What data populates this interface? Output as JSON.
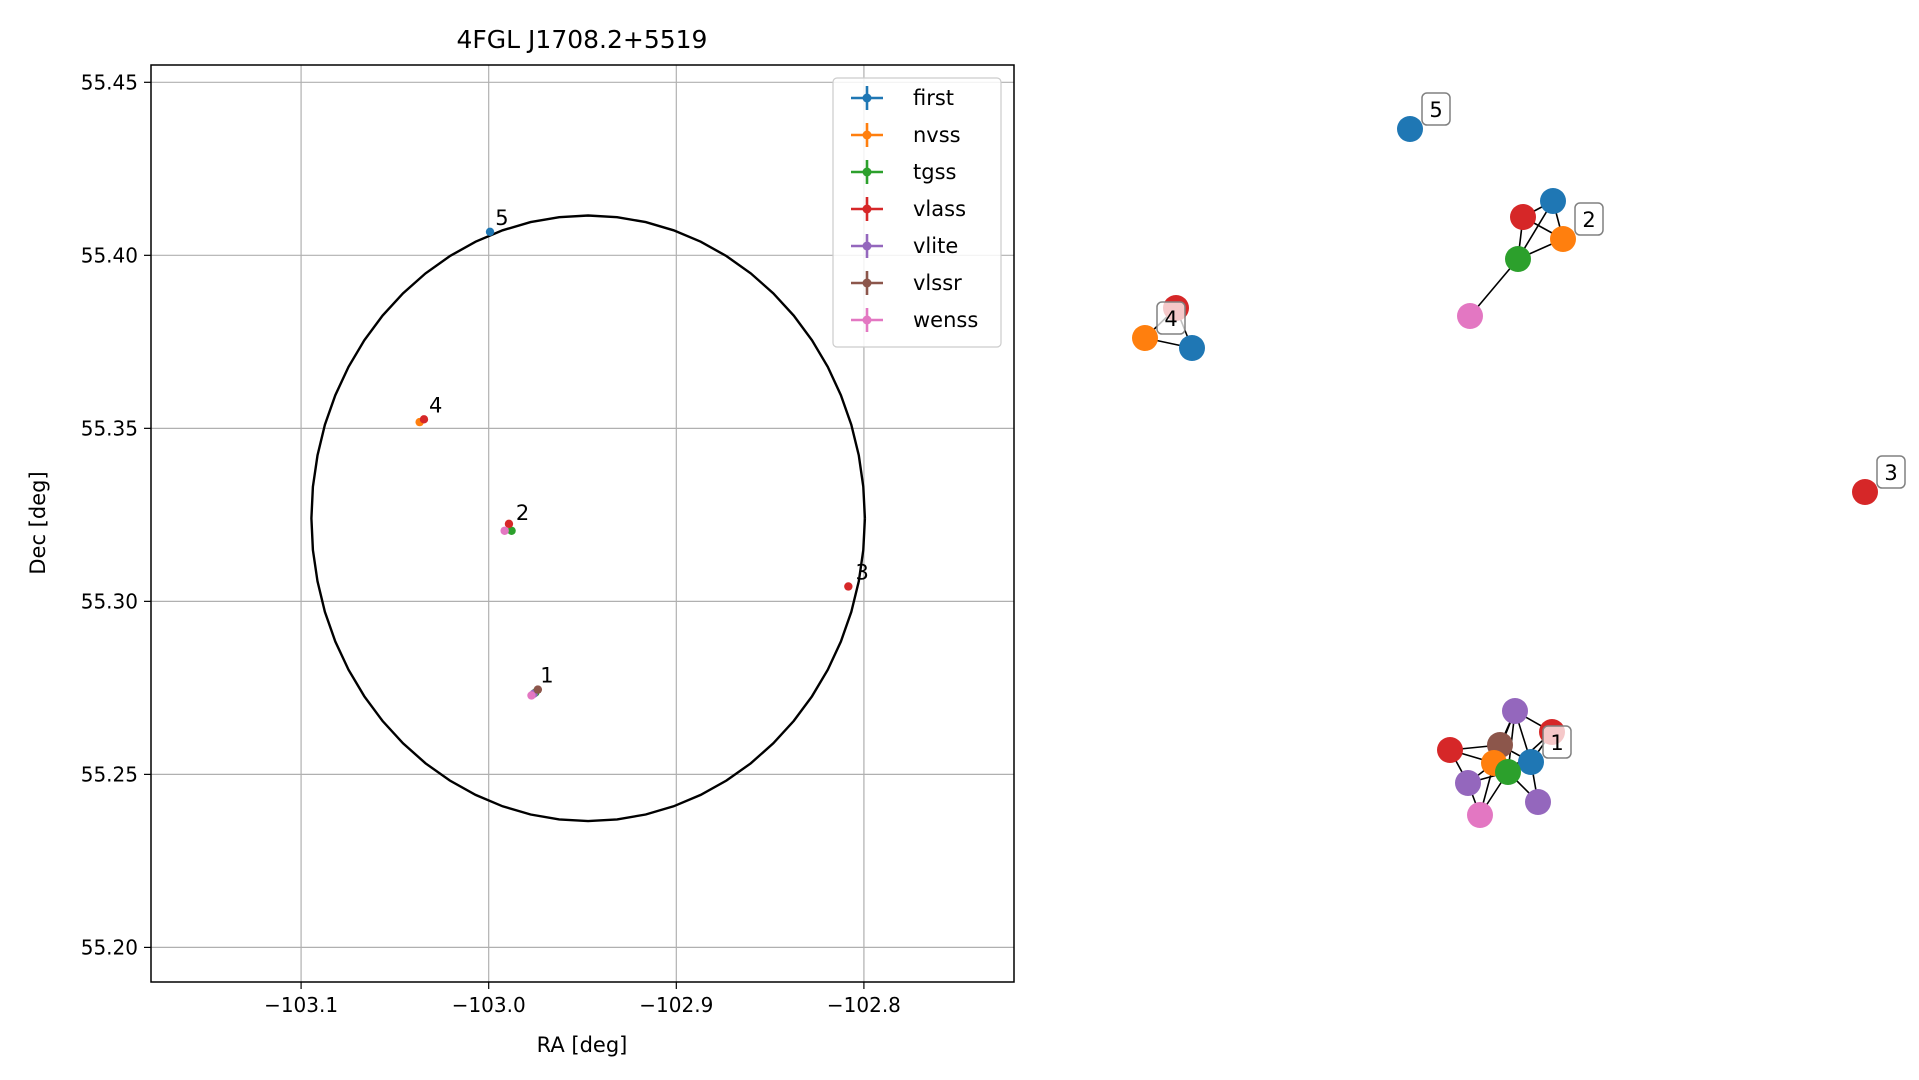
{
  "chart_data": [
    {
      "type": "scatter",
      "title": "4FGL J1708.2+5519",
      "xlabel": "RA [deg]",
      "ylabel": "Dec [deg]",
      "xlim": [
        -103.18,
        -102.72
      ],
      "ylim": [
        55.19,
        55.455
      ],
      "xticks": [
        -103.1,
        -103.0,
        -102.9,
        -102.8
      ],
      "xtick_labels": [
        "−103.1",
        "−103.0",
        "−102.9",
        "−102.8"
      ],
      "yticks": [
        55.2,
        55.25,
        55.3,
        55.35,
        55.4,
        55.45
      ],
      "ytick_labels": [
        "55.20",
        "55.25",
        "55.30",
        "55.35",
        "55.40",
        "55.45"
      ],
      "grid": true,
      "legend_position": "top-right",
      "ellipse": {
        "center": [
          -102.947,
          55.324
        ],
        "semi_axis_ra": 0.1475,
        "semi_axis_dec": 0.0875,
        "color": "#000000"
      },
      "series": [
        {
          "name": "first",
          "color": "#1f77b4",
          "points": [
            [
              -102.9993,
              55.4068
            ]
          ]
        },
        {
          "name": "nvss",
          "color": "#ff7f0e",
          "points": [
            [
              -103.0368,
              55.3518
            ]
          ]
        },
        {
          "name": "tgss",
          "color": "#2ca02c",
          "points": [
            [
              -102.9878,
              55.3204
            ],
            [
              -102.9752,
              55.2736
            ]
          ]
        },
        {
          "name": "vlass",
          "color": "#d62728",
          "points": [
            [
              -103.0345,
              55.3526
            ],
            [
              -102.9892,
              55.3224
            ],
            [
              -102.8083,
              55.3043
            ]
          ]
        },
        {
          "name": "vlite",
          "color": "#9467bd",
          "points": [
            [
              -102.976,
              55.2733
            ]
          ]
        },
        {
          "name": "vlssr",
          "color": "#8c564b",
          "points": [
            [
              -102.9738,
              55.2745
            ]
          ]
        },
        {
          "name": "wenss",
          "color": "#e377c2",
          "points": [
            [
              -102.9915,
              55.3204
            ],
            [
              -102.9772,
              55.2728
            ]
          ]
        }
      ],
      "annotations": [
        {
          "text": "1",
          "x": -102.9725,
          "y": 55.2765
        },
        {
          "text": "2",
          "x": -102.9855,
          "y": 55.3235
        },
        {
          "text": "3",
          "x": -102.8045,
          "y": 55.3063
        },
        {
          "text": "4",
          "x": -103.0318,
          "y": 55.3546
        },
        {
          "text": "5",
          "x": -102.9965,
          "y": 55.4088
        }
      ]
    },
    {
      "type": "network",
      "nodes": [
        {
          "label": "5",
          "color": "#1f77b4"
        },
        {
          "label": "",
          "color": "#1f77b4"
        },
        {
          "label": "",
          "color": "#d62728"
        },
        {
          "label": "2",
          "color": "#ff7f0e"
        },
        {
          "label": "",
          "color": "#2ca02c"
        },
        {
          "label": "",
          "color": "#e377c2"
        },
        {
          "label": "",
          "color": "#d62728"
        },
        {
          "label": "4",
          "color": "#ff7f0e"
        },
        {
          "label": "",
          "color": "#1f77b4"
        },
        {
          "label": "3",
          "color": "#d62728"
        },
        {
          "label": "",
          "color": "#9467bd"
        },
        {
          "label": "",
          "color": "#d62728"
        },
        {
          "label": "",
          "color": "#d62728"
        },
        {
          "label": "",
          "color": "#8c564b"
        },
        {
          "label": "1",
          "color": "#1f77b4"
        },
        {
          "label": "",
          "color": "#ff7f0e"
        },
        {
          "label": "",
          "color": "#2ca02c"
        },
        {
          "label": "",
          "color": "#9467bd"
        },
        {
          "label": "",
          "color": "#9467bd"
        },
        {
          "label": "",
          "color": "#e377c2"
        }
      ],
      "edges": [
        [
          1,
          2
        ],
        [
          1,
          3
        ],
        [
          1,
          4
        ],
        [
          2,
          3
        ],
        [
          2,
          4
        ],
        [
          3,
          4
        ],
        [
          4,
          5
        ],
        [
          6,
          7
        ],
        [
          6,
          8
        ],
        [
          7,
          8
        ],
        [
          10,
          11
        ],
        [
          10,
          13
        ],
        [
          10,
          14
        ],
        [
          10,
          15
        ],
        [
          10,
          16
        ],
        [
          11,
          14
        ],
        [
          11,
          16
        ],
        [
          12,
          15
        ],
        [
          12,
          13
        ],
        [
          12,
          17
        ],
        [
          13,
          14
        ],
        [
          13,
          15
        ],
        [
          13,
          16
        ],
        [
          14,
          16
        ],
        [
          14,
          18
        ],
        [
          15,
          16
        ],
        [
          15,
          17
        ],
        [
          15,
          19
        ],
        [
          16,
          17
        ],
        [
          16,
          18
        ],
        [
          16,
          19
        ],
        [
          17,
          19
        ]
      ]
    }
  ]
}
